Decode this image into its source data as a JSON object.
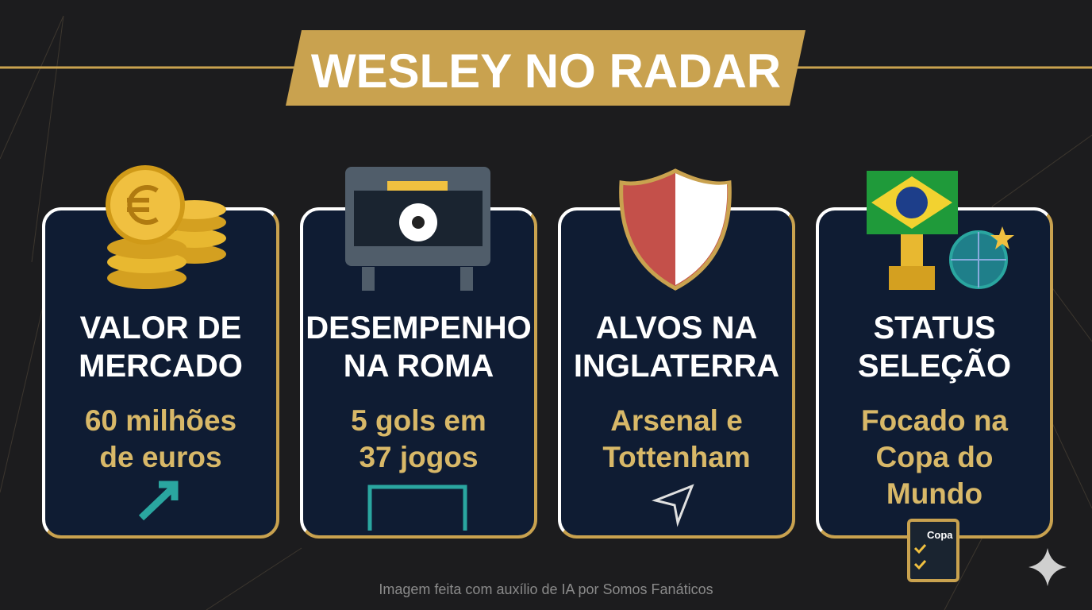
{
  "header": {
    "title": "WESLEY NO RADAR"
  },
  "cards": [
    {
      "heading": [
        "VALOR DE",
        "MERCADO"
      ],
      "detail": [
        "60 milhões",
        "de euros"
      ]
    },
    {
      "heading": [
        "DESEMPENHO",
        "NA ROMA"
      ],
      "detail": [
        "5 gols em",
        "37 jogos"
      ]
    },
    {
      "heading": [
        "ALVOS NA",
        "INGLATERRA"
      ],
      "detail": [
        "Arsenal e",
        "Tottenham"
      ]
    },
    {
      "heading": [
        "STATUS",
        "SELEÇÃO"
      ],
      "detail": [
        "Focado na",
        "Copa do",
        "Mundo"
      ],
      "icon_label": "Copa"
    }
  ],
  "footer": "Imagem feita com auxílio de IA por Somos Fanáticos"
}
